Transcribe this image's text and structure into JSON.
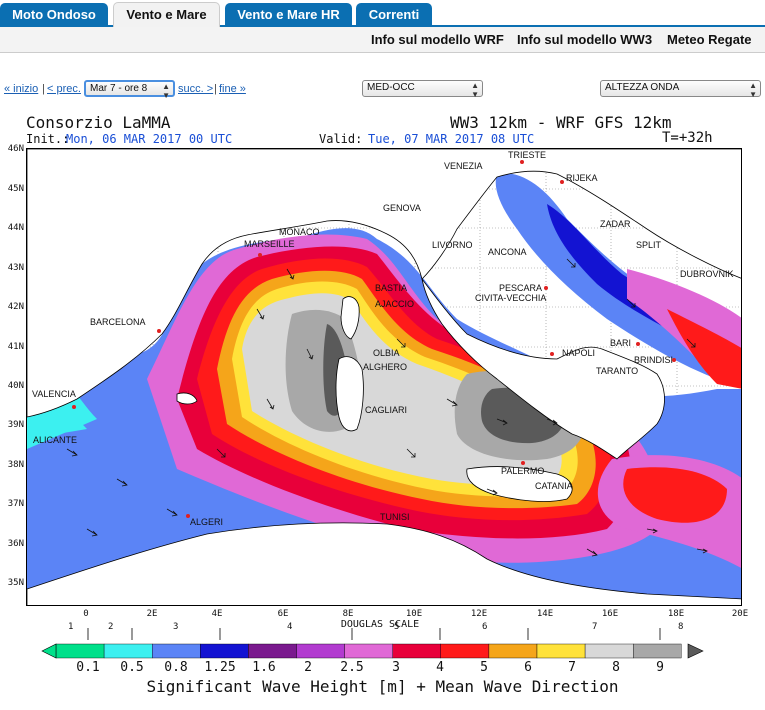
{
  "tabs": [
    {
      "label": "Moto Ondoso",
      "active": false
    },
    {
      "label": "Vento e Mare",
      "active": true
    },
    {
      "label": "Vento e Mare HR",
      "active": false
    },
    {
      "label": "Correnti",
      "active": false
    }
  ],
  "sublinks": [
    "Info sul modello WRF",
    "Info sul modello WW3",
    "Meteo Regate"
  ],
  "nav": {
    "inizio": "« inizio",
    "prec": "< prec.",
    "time_select": "Mar 7 - ore 8",
    "succ": "succ. >",
    "fine": "fine »",
    "area_select": "MED-OCC",
    "field_select": "ALTEZZA ONDA"
  },
  "header": {
    "org": "Consorzio LaMMA",
    "model": "WW3 12km - WRF GFS 12km",
    "init_label": "Init.:",
    "init_value": "Mon, 06 MAR 2017  00 UTC",
    "valid_label": "Valid:",
    "valid_value": "Tue, 07 MAR 2017  08 UTC",
    "forecast": "T=+32h"
  },
  "map": {
    "lat_labels": [
      "46N",
      "45N",
      "44N",
      "43N",
      "42N",
      "41N",
      "40N",
      "39N",
      "38N",
      "37N",
      "36N",
      "35N"
    ],
    "lon_labels": [
      "0",
      "2E",
      "4E",
      "6E",
      "8E",
      "10E",
      "12E",
      "14E",
      "16E",
      "18E",
      "20E"
    ],
    "cities": [
      "TRIESTE",
      "VENEZIA",
      "RIJEKA",
      "GENOVA",
      "MONACO",
      "MARSEILLE",
      "LIVORNO",
      "ZADAR",
      "SPLIT",
      "ANCONA",
      "DUBROVNIK",
      "BASTIA",
      "AJACCIO",
      "PESCARA",
      "CIVITA-VECCHIA",
      "BARCELONA",
      "OLBIA",
      "ALGHERO",
      "NAPOLI",
      "BARI",
      "BRINDISI",
      "TARANTO",
      "VALENCIA",
      "CAGLIARI",
      "ALICANTE",
      "PALERMO",
      "CATANIA",
      "TUNISI",
      "ALGERI"
    ]
  },
  "legend": {
    "douglas_title": "DOUGLAS SCALE",
    "douglas_numbers": [
      "1",
      "2",
      "3",
      "4",
      "5",
      "6",
      "7",
      "8"
    ],
    "values": [
      "0.1",
      "0.5",
      "0.8",
      "1.25",
      "1.6",
      "2",
      "2.5",
      "3",
      "4",
      "5",
      "6",
      "7",
      "8",
      "9"
    ],
    "colors": [
      "#00e08a",
      "#3cf0f0",
      "#5b84f6",
      "#1313d2",
      "#7a1a8e",
      "#b23bd0",
      "#e069d6",
      "#e8003a",
      "#ff1a1a",
      "#f5a51a",
      "#ffe23a",
      "#d8d8d8",
      "#a8a8a8",
      "#5a5a5a"
    ],
    "title": "Significant Wave Height [m] + Mean Wave Direction"
  }
}
